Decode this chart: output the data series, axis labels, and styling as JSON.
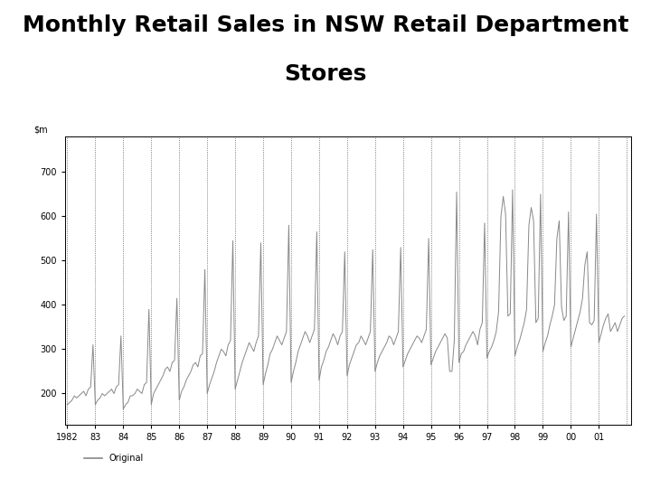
{
  "title_line1": "Monthly Retail Sales in NSW Retail Department",
  "title_line2": "Stores",
  "start_year": 1982,
  "start_month": 1,
  "ylim": [
    130,
    780
  ],
  "yticks": [
    200,
    300,
    400,
    500,
    600,
    700
  ],
  "xtick_labels": [
    "1982",
    "83",
    "84",
    "85",
    "86",
    "87",
    "88",
    "89",
    "90",
    "91",
    "92",
    "93",
    "94",
    "95",
    "96",
    "97",
    "98",
    "99",
    "00",
    "01"
  ],
  "background_color": "#ffffff",
  "line_color": "#888888",
  "line_width": 0.7,
  "legend_label": "Original",
  "title_fontsize": 18,
  "axis_fontsize": 7,
  "ylabel_fontsize": 7,
  "legend_fontsize": 7,
  "values": [
    175,
    180,
    185,
    195,
    190,
    195,
    200,
    205,
    195,
    210,
    215,
    310,
    175,
    185,
    190,
    200,
    195,
    200,
    205,
    210,
    200,
    215,
    220,
    330,
    165,
    175,
    180,
    195,
    195,
    200,
    210,
    205,
    200,
    220,
    225,
    390,
    175,
    200,
    210,
    220,
    230,
    240,
    255,
    260,
    250,
    270,
    275,
    415,
    185,
    205,
    215,
    230,
    240,
    250,
    265,
    270,
    260,
    285,
    290,
    480,
    200,
    220,
    235,
    250,
    270,
    285,
    300,
    295,
    285,
    310,
    320,
    545,
    210,
    230,
    250,
    270,
    285,
    300,
    315,
    305,
    295,
    315,
    330,
    540,
    220,
    245,
    265,
    290,
    300,
    315,
    330,
    320,
    310,
    325,
    340,
    580,
    225,
    250,
    270,
    295,
    310,
    325,
    340,
    330,
    315,
    330,
    345,
    565,
    230,
    260,
    275,
    295,
    305,
    320,
    335,
    325,
    310,
    330,
    340,
    520,
    240,
    265,
    280,
    295,
    310,
    315,
    330,
    320,
    310,
    325,
    340,
    525,
    250,
    270,
    285,
    295,
    305,
    315,
    330,
    325,
    310,
    325,
    340,
    530,
    260,
    275,
    290,
    300,
    310,
    320,
    330,
    325,
    315,
    330,
    345,
    550,
    265,
    280,
    295,
    305,
    315,
    325,
    335,
    325,
    250,
    250,
    320,
    655,
    270,
    290,
    295,
    310,
    320,
    330,
    340,
    330,
    310,
    345,
    360,
    585,
    280,
    295,
    305,
    320,
    340,
    385,
    600,
    645,
    605,
    375,
    380,
    660,
    285,
    305,
    320,
    340,
    360,
    390,
    580,
    620,
    590,
    360,
    370,
    650,
    295,
    315,
    330,
    355,
    375,
    400,
    550,
    590,
    395,
    365,
    375,
    610,
    305,
    325,
    345,
    365,
    385,
    415,
    490,
    520,
    360,
    355,
    365,
    605,
    315,
    335,
    355,
    370,
    380,
    340,
    350,
    360,
    340,
    355,
    370,
    375
  ]
}
